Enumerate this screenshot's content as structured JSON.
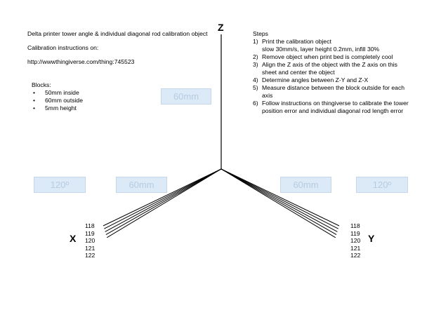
{
  "title": "Delta printer tower angle & individual diagonal rod calibration object",
  "calibration_heading": "Calibration instructions on:",
  "url": "http://wwwthingiverse.com/thing:745523",
  "blocks": {
    "heading": "Blocks:",
    "items": [
      "50mm inside",
      "60mm outside",
      "5mm height"
    ]
  },
  "steps": {
    "heading": "Steps",
    "items": [
      {
        "num": "1)",
        "text": "Print the calibration object",
        "sub": "slow 30mm/s, layer height 0.2mm, infill 30%"
      },
      {
        "num": "2)",
        "text": "Remove object when print bed is completely cool"
      },
      {
        "num": "3)",
        "text": "Align the Z axis of the object with the Z axis on this sheet and center the object"
      },
      {
        "num": "4)",
        "text": "Determine angles between Z-Y and Z-X"
      },
      {
        "num": "5)",
        "text": "Measure distance between the block outside for each axis"
      },
      {
        "num": "6)",
        "text": "Follow instructions on thingiverse to calibrate the tower position error and individual diagonal rod length error"
      }
    ]
  },
  "axes": {
    "z": "Z",
    "x": "X",
    "y": "Y"
  },
  "boxes": {
    "top": "60mm",
    "left_angle": "120º",
    "left_len": "60mm",
    "right_len": "60mm",
    "right_angle": "120º"
  },
  "rods_x": [
    "118",
    "119",
    "120",
    "121",
    "122"
  ],
  "rods_y": [
    "118",
    "119",
    "120",
    "121",
    "122"
  ],
  "colors": {
    "box_fill": "#dce9f6",
    "box_text": "#b7cde2",
    "line": "#000000"
  }
}
